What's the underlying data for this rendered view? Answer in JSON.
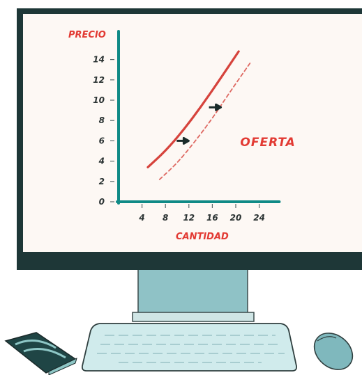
{
  "chart_data": {
    "type": "line",
    "title": "",
    "xlabel": "CANTIDAD",
    "ylabel": "PRECIO",
    "xlim": [
      0,
      26
    ],
    "ylim": [
      0,
      15
    ],
    "x_ticks": [
      4,
      8,
      12,
      16,
      20,
      24
    ],
    "y_ticks": [
      0,
      2,
      4,
      6,
      8,
      10,
      12,
      14
    ],
    "grid": false,
    "series": [
      {
        "name": "",
        "style": "solid",
        "x": [
          5,
          8,
          11,
          14,
          17,
          20.5
        ],
        "y": [
          3.4,
          5.0,
          7.0,
          9.3,
          11.8,
          14.8
        ]
      },
      {
        "name": "",
        "style": "dashed",
        "x": [
          7,
          10,
          13,
          16,
          19,
          22.5
        ],
        "y": [
          2.2,
          3.8,
          5.9,
          8.2,
          10.8,
          13.7
        ]
      }
    ],
    "annotations": [
      {
        "text": "OFERTA",
        "x": 21,
        "y": 5.9
      },
      {
        "text": "arrow-right",
        "x": 11,
        "y": 6.0
      },
      {
        "text": "arrow-right",
        "x": 16.5,
        "y": 9.3
      }
    ],
    "colors": {
      "axis": "#0f8a86",
      "supply": "#d6433c",
      "label": "#e23a33",
      "arrow": "#1a2b2a"
    }
  }
}
